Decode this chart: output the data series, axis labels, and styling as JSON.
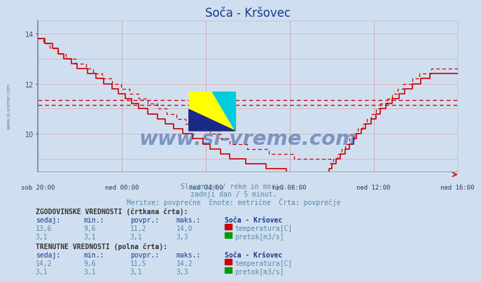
{
  "title": "Soča - Kršovec",
  "title_color": "#1a3a8a",
  "bg_color": "#d0dff0",
  "plot_bg_color": "#d0dff0",
  "xlabel_ticks": [
    "sob 20:00",
    "ned 00:00",
    "ned 04:00",
    "ned 08:00",
    "ned 12:00",
    "ned 16:00"
  ],
  "xlabel_positions_frac": [
    0.0,
    0.2,
    0.4,
    0.6,
    0.8,
    1.0
  ],
  "ylim": [
    8.5,
    14.5
  ],
  "yticks": [
    10,
    12,
    14
  ],
  "grid_color_v": "#c8a0b0",
  "grid_color_h": "#e0b0b0",
  "temp_color": "#cc0000",
  "avg_line1": 11.35,
  "avg_line2": 11.15,
  "flow_color": "#009900",
  "watermark_text": "www.si-vreme.com",
  "watermark_color": "#1a3a8a",
  "watermark_alpha": 0.45,
  "side_text": "www.si-vreme.com",
  "subtitle1": "Slovenija / reke in morje.",
  "subtitle2": "zadnji dan / 5 minut.",
  "subtitle3": "Meritve: povprečne  Enote: metrične  Črta: povprečje",
  "subtitle_color": "#5588aa",
  "hist_label_title": "ZGODOVINSKE VREDNOSTI (črtkana črta):",
  "curr_label_title": "TRENUTNE VREDNOSTI (polna črta):",
  "col_headers": [
    "sedaj:",
    "min.:",
    "povpr.:",
    "maks.:",
    "Soča - Kršovec"
  ],
  "hist_temp_row": [
    "13,6",
    "9,6",
    "11,2",
    "14,0",
    "temperatura[C]"
  ],
  "hist_flow_row": [
    "3,1",
    "3,1",
    "3,1",
    "3,3",
    "pretok[m3/s]"
  ],
  "curr_temp_row": [
    "14,2",
    "9,6",
    "11,5",
    "14,2",
    "temperatura[C]"
  ],
  "curr_flow_row": [
    "3,1",
    "3,1",
    "3,1",
    "3,3",
    "pretok[m3/s]"
  ],
  "temp_color_box": "#cc0000",
  "flow_color_box": "#009900",
  "n_points": 288,
  "label_color": "#1a3a8a",
  "data_color": "#5588aa",
  "bold_label_color": "#333333"
}
